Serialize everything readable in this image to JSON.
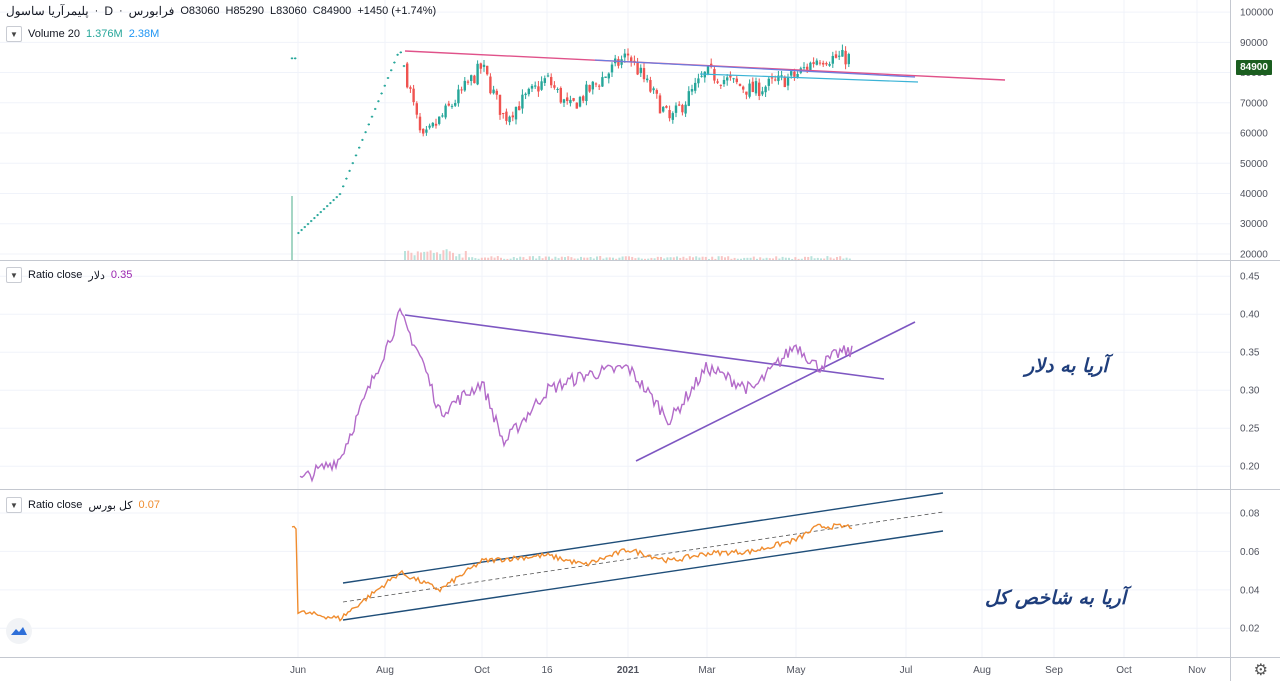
{
  "header": {
    "symbol": "پلیمرآریا ساسول",
    "interval": "D",
    "exchange": "فرابورس",
    "open": "O83060",
    "high": "H85290",
    "low": "L83060",
    "close": "C84900",
    "change": "+1450 (+1.74%)"
  },
  "volume_legend": {
    "label": "Volume 20",
    "v1": "1.376M",
    "v2": "2.38M"
  },
  "ratio1_legend": {
    "label": "Ratio close",
    "symbol": "دلار",
    "value": "0.35"
  },
  "ratio2_legend": {
    "label": "Ratio close",
    "symbol": "کل بورس",
    "value": "0.07"
  },
  "annotations": {
    "ratio1": "آریا به دلار",
    "ratio2": "آریا به شاخص کل"
  },
  "last_price": "84900",
  "colors": {
    "up": "#26a69a",
    "down": "#ef5350",
    "ratio1_line": "#b36bc9",
    "ratio2_line": "#f08c2e",
    "trend_pink": "#e0528a",
    "trend_blue": "#6a7de0",
    "trend_cyan": "#3bb3d6",
    "trend_purple": "#7e57c2",
    "channel": "#1f4e79"
  },
  "chart_data": [
    {
      "type": "candlestick",
      "y_ticks": [
        "100000",
        "90000",
        "80000",
        "70000",
        "60000",
        "50000",
        "40000",
        "30000",
        "20000"
      ],
      "ylim": [
        18000,
        104000
      ],
      "key_points": [
        {
          "x": "Jun",
          "y": 27000
        },
        {
          "x": "Jul",
          "y": 40000
        },
        {
          "x": "Aug",
          "y": 88000
        },
        {
          "x": "Aug",
          "y": 57000
        },
        {
          "x": "Oct",
          "y": 82000
        },
        {
          "x": "Oct",
          "y": 65000
        },
        {
          "x": "16",
          "y": 78000
        },
        {
          "x": "16",
          "y": 68000
        },
        {
          "x": "2021",
          "y": 86000
        },
        {
          "x": "Feb",
          "y": 64000
        },
        {
          "x": "Mar",
          "y": 80000
        },
        {
          "x": "Apr",
          "y": 74000
        },
        {
          "x": "May",
          "y": 79000
        },
        {
          "x": "May",
          "y": 84900
        }
      ]
    },
    {
      "type": "line",
      "y_ticks": [
        "0.45",
        "0.40",
        "0.35",
        "0.30",
        "0.25",
        "0.20"
      ],
      "ylim": [
        0.17,
        0.47
      ],
      "key_points": [
        {
          "x": "Jun",
          "y": 0.18
        },
        {
          "x": "Jul",
          "y": 0.21
        },
        {
          "x": "Jul",
          "y": 0.28
        },
        {
          "x": "Aug",
          "y": 0.4
        },
        {
          "x": "Aug",
          "y": 0.34
        },
        {
          "x": "Sep",
          "y": 0.27
        },
        {
          "x": "Oct",
          "y": 0.31
        },
        {
          "x": "Oct",
          "y": 0.23
        },
        {
          "x": "16",
          "y": 0.3
        },
        {
          "x": "Dec",
          "y": 0.32
        },
        {
          "x": "2021",
          "y": 0.33
        },
        {
          "x": "Feb",
          "y": 0.26
        },
        {
          "x": "Mar",
          "y": 0.33
        },
        {
          "x": "Apr",
          "y": 0.3
        },
        {
          "x": "May",
          "y": 0.36
        },
        {
          "x": "May",
          "y": 0.33
        },
        {
          "x": "May",
          "y": 0.35
        }
      ]
    },
    {
      "type": "line",
      "y_ticks": [
        "0.08",
        "0.06",
        "0.04",
        "0.02"
      ],
      "ylim": [
        0.005,
        0.092
      ],
      "key_points": [
        {
          "x": "Jun",
          "y": 0.0285
        },
        {
          "x": "Jul",
          "y": 0.025
        },
        {
          "x": "Aug",
          "y": 0.049
        },
        {
          "x": "Sep",
          "y": 0.04
        },
        {
          "x": "Oct",
          "y": 0.055
        },
        {
          "x": "16",
          "y": 0.058
        },
        {
          "x": "Dec",
          "y": 0.053
        },
        {
          "x": "2021",
          "y": 0.061
        },
        {
          "x": "Feb",
          "y": 0.055
        },
        {
          "x": "Mar",
          "y": 0.059
        },
        {
          "x": "Apr",
          "y": 0.06
        },
        {
          "x": "May",
          "y": 0.066
        },
        {
          "x": "May",
          "y": 0.073
        }
      ]
    }
  ],
  "x_axis": [
    "Jun",
    "Aug",
    "Oct",
    "16",
    "2021",
    "Mar",
    "May",
    "Jul",
    "Aug",
    "Sep",
    "Oct",
    "Nov"
  ]
}
